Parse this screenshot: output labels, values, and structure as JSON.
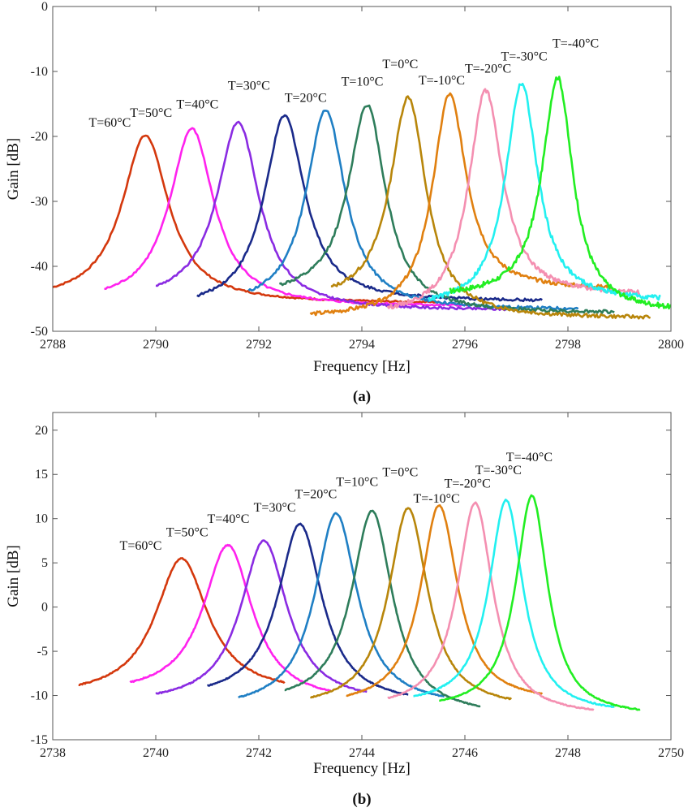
{
  "chart_data": [
    {
      "id": "a",
      "type": "line",
      "caption": "(a)",
      "xlabel": "Frequency [Hz]",
      "ylabel": "Gain [dB]",
      "xlim": [
        2788,
        2800
      ],
      "ylim": [
        -50,
        0
      ],
      "xticks": [
        2788,
        2790,
        2792,
        2794,
        2796,
        2798,
        2800
      ],
      "yticks": [
        0,
        -10,
        -20,
        -30,
        -40,
        -50
      ],
      "grid": false,
      "series": [
        {
          "name": "T=60°C",
          "color": "#d4380d",
          "peak_x": 2789.8,
          "peak_y": -19.8,
          "x_start": 2788.0,
          "y_start": -43.2,
          "x_end": 2795.5,
          "y_end": -45.5,
          "halfwidth": 0.55,
          "label_x": 2788.7,
          "label_y": -18.5
        },
        {
          "name": "T=50°C",
          "color": "#ff22ee",
          "peak_x": 2790.7,
          "peak_y": -18.8,
          "x_start": 2789.0,
          "y_start": -43.5,
          "x_end": 2796.1,
          "y_end": -46.0,
          "halfwidth": 0.52,
          "label_x": 2789.5,
          "label_y": -17.0
        },
        {
          "name": "T=40°C",
          "color": "#8a2be2",
          "peak_x": 2791.6,
          "peak_y": -17.8,
          "x_start": 2790.0,
          "y_start": -43.0,
          "x_end": 2796.8,
          "y_end": -46.6,
          "halfwidth": 0.5,
          "label_x": 2790.4,
          "label_y": -15.7
        },
        {
          "name": "T=30°C",
          "color": "#1a2a8a",
          "peak_x": 2792.5,
          "peak_y": -16.8,
          "x_start": 2790.8,
          "y_start": -44.5,
          "x_end": 2797.5,
          "y_end": -45.2,
          "halfwidth": 0.48,
          "label_x": 2791.4,
          "label_y": -12.8
        },
        {
          "name": "T=20°C",
          "color": "#1f7fc4",
          "peak_x": 2793.3,
          "peak_y": -15.9,
          "x_start": 2791.8,
          "y_start": -43.8,
          "x_end": 2798.2,
          "y_end": -46.5,
          "halfwidth": 0.46,
          "label_x": 2792.5,
          "label_y": -14.7
        },
        {
          "name": "T=10°C",
          "color": "#2e7d5b",
          "peak_x": 2794.1,
          "peak_y": -15.1,
          "x_start": 2792.4,
          "y_start": -42.8,
          "x_end": 2798.9,
          "y_end": -47.0,
          "halfwidth": 0.44,
          "label_x": 2793.6,
          "label_y": -12.2
        },
        {
          "name": "T=0°C",
          "color": "#b8860b",
          "peak_x": 2794.9,
          "peak_y": -13.9,
          "x_start": 2793.4,
          "y_start": -43.2,
          "x_end": 2799.6,
          "y_end": -47.8,
          "halfwidth": 0.42,
          "label_x": 2794.4,
          "label_y": -9.5
        },
        {
          "name": "T=-10°C",
          "color": "#e08010",
          "peak_x": 2795.7,
          "peak_y": -13.5,
          "x_start": 2793.0,
          "y_start": -47.3,
          "x_end": 2798.8,
          "y_end": -43.2,
          "halfwidth": 0.4,
          "label_x": 2795.1,
          "label_y": -12.0
        },
        {
          "name": "T=-20°C",
          "color": "#f48fb1",
          "peak_x": 2796.4,
          "peak_y": -12.9,
          "x_start": 2794.5,
          "y_start": -46.3,
          "x_end": 2799.4,
          "y_end": -44.0,
          "halfwidth": 0.4,
          "label_x": 2796.0,
          "label_y": -10.2
        },
        {
          "name": "T=-30°C",
          "color": "#22f0f0",
          "peak_x": 2797.1,
          "peak_y": -11.8,
          "x_start": 2795.3,
          "y_start": -45.0,
          "x_end": 2799.8,
          "y_end": -44.8,
          "halfwidth": 0.38,
          "label_x": 2796.7,
          "label_y": -8.3
        },
        {
          "name": "T=-40°C",
          "color": "#22ee22",
          "peak_x": 2797.8,
          "peak_y": -10.9,
          "x_start": 2795.7,
          "y_start": -43.8,
          "x_end": 2800.0,
          "y_end": -46.2,
          "halfwidth": 0.36,
          "label_x": 2797.7,
          "label_y": -6.3
        }
      ]
    },
    {
      "id": "b",
      "type": "line",
      "caption": "(b)",
      "xlabel": "Frequency [Hz]",
      "ylabel": "Gain [dB]",
      "xlim": [
        2738,
        2750
      ],
      "ylim": [
        -15,
        22
      ],
      "xticks": [
        2738,
        2740,
        2742,
        2744,
        2746,
        2748,
        2750
      ],
      "yticks": [
        20,
        15,
        10,
        5,
        0,
        -5,
        -10,
        -15
      ],
      "grid": false,
      "series": [
        {
          "name": "T=60°C",
          "color": "#d4380d",
          "peak_x": 2740.5,
          "peak_y": 5.5,
          "x_start": 2738.5,
          "y_start": -8.8,
          "x_end": 2742.5,
          "y_end": -8.5,
          "halfwidth": 0.62,
          "label_x": 2739.3,
          "label_y": 6.5
        },
        {
          "name": "T=50°C",
          "color": "#ff22ee",
          "peak_x": 2741.4,
          "peak_y": 7.0,
          "x_start": 2739.5,
          "y_start": -8.5,
          "x_end": 2743.4,
          "y_end": -9.5,
          "halfwidth": 0.58,
          "label_x": 2740.2,
          "label_y": 8.0
        },
        {
          "name": "T=40°C",
          "color": "#8a2be2",
          "peak_x": 2742.1,
          "peak_y": 7.5,
          "x_start": 2740.0,
          "y_start": -9.8,
          "x_end": 2744.1,
          "y_end": -9.6,
          "halfwidth": 0.55,
          "label_x": 2741.0,
          "label_y": 9.5
        },
        {
          "name": "T=30°C",
          "color": "#1a2a8a",
          "peak_x": 2742.8,
          "peak_y": 9.4,
          "x_start": 2741.0,
          "y_start": -8.9,
          "x_end": 2744.9,
          "y_end": -9.9,
          "halfwidth": 0.52,
          "label_x": 2741.9,
          "label_y": 10.8
        },
        {
          "name": "T=20°C",
          "color": "#1f7fc4",
          "peak_x": 2743.5,
          "peak_y": 10.6,
          "x_start": 2741.6,
          "y_start": -10.2,
          "x_end": 2745.6,
          "y_end": -10.1,
          "halfwidth": 0.5,
          "label_x": 2742.7,
          "label_y": 12.3
        },
        {
          "name": "T=10°C",
          "color": "#2e7d5b",
          "peak_x": 2744.2,
          "peak_y": 10.9,
          "x_start": 2742.5,
          "y_start": -9.4,
          "x_end": 2746.3,
          "y_end": -11.2,
          "halfwidth": 0.48,
          "label_x": 2743.5,
          "label_y": 13.7
        },
        {
          "name": "T=0°C",
          "color": "#b8860b",
          "peak_x": 2744.9,
          "peak_y": 11.2,
          "x_start": 2743.0,
          "y_start": -10.2,
          "x_end": 2746.9,
          "y_end": -10.4,
          "halfwidth": 0.46,
          "label_x": 2744.4,
          "label_y": 14.8
        },
        {
          "name": "T=-10°C",
          "color": "#e08010",
          "peak_x": 2745.5,
          "peak_y": 11.5,
          "x_start": 2743.7,
          "y_start": -10.0,
          "x_end": 2747.5,
          "y_end": -9.8,
          "halfwidth": 0.44,
          "label_x": 2745.0,
          "label_y": 11.8
        },
        {
          "name": "T=-20°C",
          "color": "#f48fb1",
          "peak_x": 2746.2,
          "peak_y": 11.8,
          "x_start": 2744.5,
          "y_start": -10.3,
          "x_end": 2748.5,
          "y_end": -11.6,
          "halfwidth": 0.42,
          "label_x": 2745.6,
          "label_y": 13.5
        },
        {
          "name": "T=-30°C",
          "color": "#22f0f0",
          "peak_x": 2746.8,
          "peak_y": 12.1,
          "x_start": 2745.0,
          "y_start": -10.1,
          "x_end": 2748.9,
          "y_end": -11.3,
          "halfwidth": 0.4,
          "label_x": 2746.2,
          "label_y": 15.0
        },
        {
          "name": "T=-40°C",
          "color": "#22ee22",
          "peak_x": 2747.3,
          "peak_y": 12.6,
          "x_start": 2745.5,
          "y_start": -10.6,
          "x_end": 2749.4,
          "y_end": -11.6,
          "halfwidth": 0.38,
          "label_x": 2746.8,
          "label_y": 16.5
        }
      ]
    }
  ]
}
